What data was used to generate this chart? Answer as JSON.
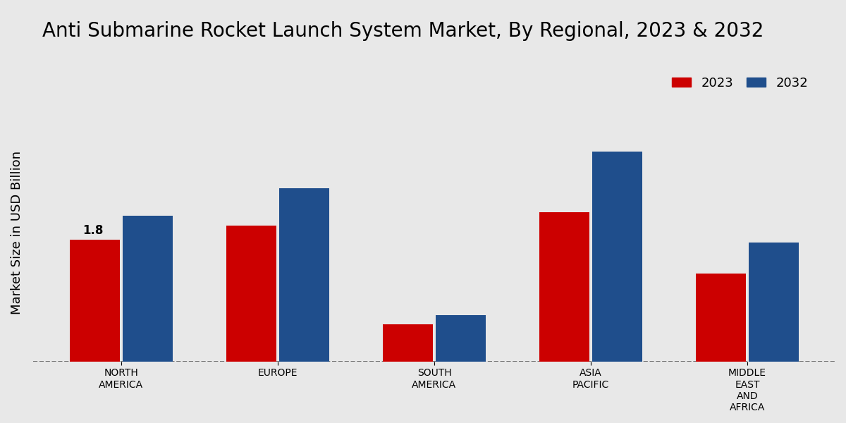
{
  "title": "Anti Submarine Rocket Launch System Market, By Regional, 2023 & 2032",
  "ylabel": "Market Size in USD Billion",
  "categories": [
    "NORTH\nAMERICA",
    "EUROPE",
    "SOUTH\nAMERICA",
    "ASIA\nPACIFIC",
    "MIDDLE\nEAST\nAND\nAFRICA"
  ],
  "values_2023": [
    1.8,
    2.0,
    0.55,
    2.2,
    1.3
  ],
  "values_2032": [
    2.15,
    2.55,
    0.68,
    3.1,
    1.75
  ],
  "color_2023": "#cc0000",
  "color_2032": "#1f4e8c",
  "label_2023": "2023",
  "label_2032": "2032",
  "bar_annotation": "1.8",
  "bar_annotation_idx": 0,
  "background_color": "#e8e8e8",
  "ylim": [
    0,
    3.8
  ],
  "title_fontsize": 20,
  "axis_label_fontsize": 13,
  "tick_fontsize": 10,
  "legend_fontsize": 13
}
